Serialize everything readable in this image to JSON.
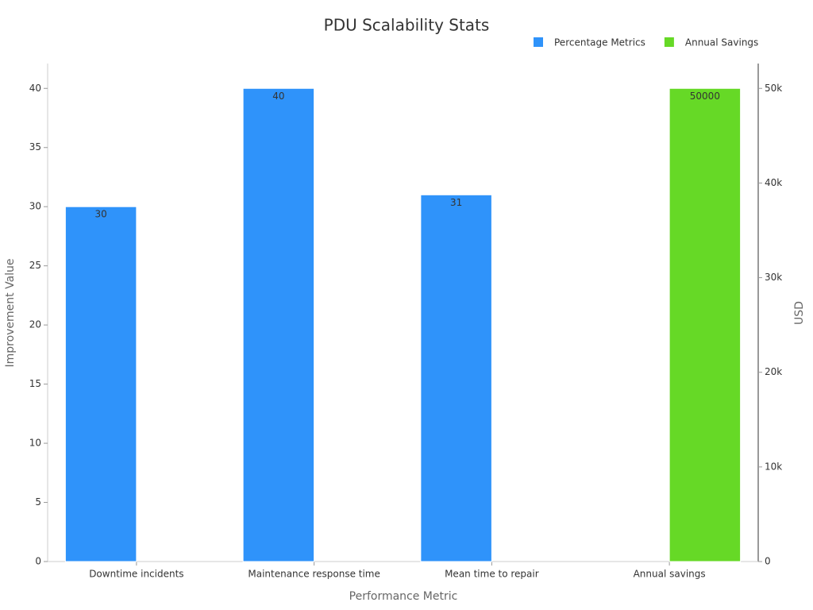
{
  "chart_data": {
    "type": "bar",
    "title": "PDU Scalability Stats",
    "xlabel": "Performance Metric",
    "ylabel": "Improvement Value",
    "y2label": "USD",
    "categories": [
      "Downtime incidents",
      "Maintenance response time",
      "Mean time to repair",
      "Annual savings"
    ],
    "series": [
      {
        "name": "Percentage Metrics",
        "color": "#2f93fa",
        "values": [
          30,
          40,
          31,
          null
        ],
        "axis": "y"
      },
      {
        "name": "Annual Savings",
        "color": "#66d926",
        "values": [
          null,
          null,
          null,
          50000
        ],
        "axis": "y2"
      }
    ],
    "ylim": [
      0,
      42.1
    ],
    "yticks": [
      0,
      5,
      10,
      15,
      20,
      25,
      30,
      35,
      40
    ],
    "y2lim": [
      0,
      52625
    ],
    "y2ticks": [
      0,
      {
        "value": 10000,
        "label": "10k"
      },
      {
        "value": 20000,
        "label": "20k"
      },
      {
        "value": 30000,
        "label": "30k"
      },
      {
        "value": 40000,
        "label": "40k"
      },
      {
        "value": 50000,
        "label": "50k"
      }
    ],
    "grid": false,
    "legend": "top-right"
  }
}
